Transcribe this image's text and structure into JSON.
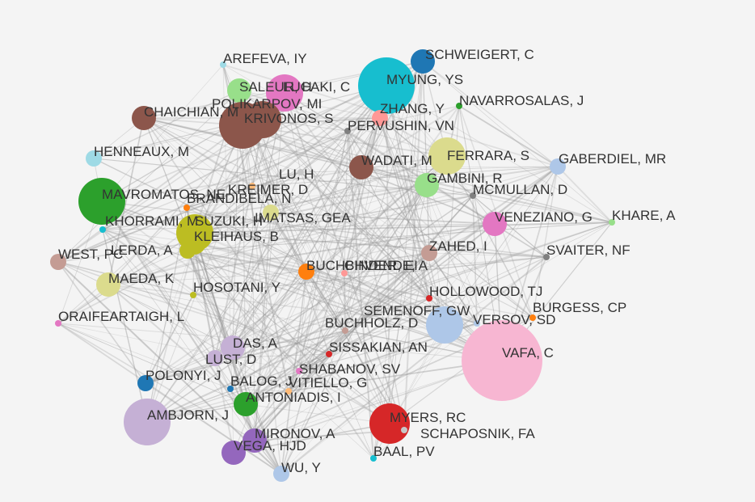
{
  "diagram": {
    "type": "co-authorship network",
    "edge_color": "#9a9a9a",
    "nodes": [
      {
        "label": "AREFEVA, IY",
        "color": "#9edae5",
        "size": 1
      },
      {
        "label": "SCHWEIGERT, C",
        "color": "#1f77b4",
        "size": 3
      },
      {
        "label": "SALEUR, H",
        "color": "#98df8a",
        "size": 3
      },
      {
        "label": "LUCAKI, C",
        "color": "#e377c2",
        "size": 4
      },
      {
        "label": "MYUNG, YS",
        "color": "#17becf",
        "size": 7
      },
      {
        "label": "POLIKARPOV, MI",
        "color": "#8c564b",
        "size": 6
      },
      {
        "label": "NAVARROSALAS, J",
        "color": "#2ca02c",
        "size": 1
      },
      {
        "label": "CHAICHIAN, M",
        "color": "#8c564b",
        "size": 3
      },
      {
        "label": "KRIVONOS, S",
        "color": "#8c564b",
        "size": 4
      },
      {
        "label": "ZHANG, Y",
        "color": "#ff9896",
        "size": 2
      },
      {
        "label": "PERVUSHIN, VN",
        "color": "#7f7f7f",
        "size": 1
      },
      {
        "label": "HENNEAUX, M",
        "color": "#9edae5",
        "size": 2
      },
      {
        "label": "FERRARA, S",
        "color": "#dbdb8d",
        "size": 4
      },
      {
        "label": "GABERDIEL, MR",
        "color": "#aec7e8",
        "size": 2
      },
      {
        "label": "WADATI, M",
        "color": "#8c564b",
        "size": 3
      },
      {
        "label": "LU, H",
        "color": "#c7c7c7",
        "size": 1
      },
      {
        "label": "GAMBINI, R",
        "color": "#98df8a",
        "size": 3
      },
      {
        "label": "MAVROMATOS, NE",
        "color": "#2ca02c",
        "size": 6
      },
      {
        "label": "KREIMER, D",
        "color": "#ffbb78",
        "size": 1
      },
      {
        "label": "BRANDIBELA, N",
        "color": "#ff7f0e",
        "size": 1
      },
      {
        "label": "MCMULLAN, D",
        "color": "#7f7f7f",
        "size": 1
      },
      {
        "label": "KHORRAMI, M",
        "color": "#17becf",
        "size": 1
      },
      {
        "label": "SUZUKI, H",
        "color": "#bcbd22",
        "size": 4
      },
      {
        "label": "IMATSAS, GEA",
        "color": "#dbdb8d",
        "size": 2
      },
      {
        "label": "VENEZIANO, G",
        "color": "#e377c2",
        "size": 3
      },
      {
        "label": "KHARE, A",
        "color": "#98df8a",
        "size": 1
      },
      {
        "label": "KLEIHAUS, B",
        "color": "#bcbd22",
        "size": 3
      },
      {
        "label": "LERDA, A",
        "color": "#bcbd22",
        "size": 2
      },
      {
        "label": "WEST, PC",
        "color": "#c49c94",
        "size": 2
      },
      {
        "label": "ZAHED, I",
        "color": "#c49c94",
        "size": 2
      },
      {
        "label": "SVAITER, NF",
        "color": "#7f7f7f",
        "size": 1
      },
      {
        "label": "BUCHBINDER, EI",
        "color": "#ff7f0e",
        "size": 2
      },
      {
        "label": "CHVENDE, A",
        "color": "#ff9896",
        "size": 1
      },
      {
        "label": "MAEDA, K",
        "color": "#dbdb8d",
        "size": 3
      },
      {
        "label": "HOSOTANI, Y",
        "color": "#bcbd22",
        "size": 1
      },
      {
        "label": "HOLLOWOOD, TJ",
        "color": "#d62728",
        "size": 1
      },
      {
        "label": "SEMENOFF, GW",
        "color": "#aec7e8",
        "size": 4
      },
      {
        "label": "BURGESS, CP",
        "color": "#ff7f0e",
        "size": 1
      },
      {
        "label": "ORAIFEARTAIGH, L",
        "color": "#e377c2",
        "size": 1
      },
      {
        "label": "BUCHHOLZ, D",
        "color": "#c49c94",
        "size": 1
      },
      {
        "label": "VERSOV, SD",
        "color": "#aec7e8",
        "size": 1
      },
      {
        "label": "DAS, A",
        "color": "#c5b0d5",
        "size": 3
      },
      {
        "label": "VAFA, C",
        "color": "#f7b6d2",
        "size": 10
      },
      {
        "label": "SISSAKIAN, AN",
        "color": "#d62728",
        "size": 1
      },
      {
        "label": "LUST, D",
        "color": "#c5b0d5",
        "size": 2
      },
      {
        "label": "SHABANOV, SV",
        "color": "#e377c2",
        "size": 1
      },
      {
        "label": "POLONYI, J",
        "color": "#1f77b4",
        "size": 2
      },
      {
        "label": "BALOG, J",
        "color": "#1f77b4",
        "size": 1
      },
      {
        "label": "VITIELLO, G",
        "color": "#ffbb78",
        "size": 1
      },
      {
        "label": "ANTONIADIS, I",
        "color": "#2ca02c",
        "size": 3
      },
      {
        "label": "AMBJORN, J",
        "color": "#c5b0d5",
        "size": 6
      },
      {
        "label": "MYERS, RC",
        "color": "#d62728",
        "size": 5
      },
      {
        "label": "MIRONOV, A",
        "color": "#9467bd",
        "size": 3
      },
      {
        "label": "SCHAPOSNIK, FA",
        "color": "#c7c7c7",
        "size": 1
      },
      {
        "label": "VEGA, HJD",
        "color": "#9467bd",
        "size": 3
      },
      {
        "label": "BAAL, PV",
        "color": "#17becf",
        "size": 1
      },
      {
        "label": "WU, Y",
        "color": "#aec7e8",
        "size": 2
      }
    ]
  }
}
